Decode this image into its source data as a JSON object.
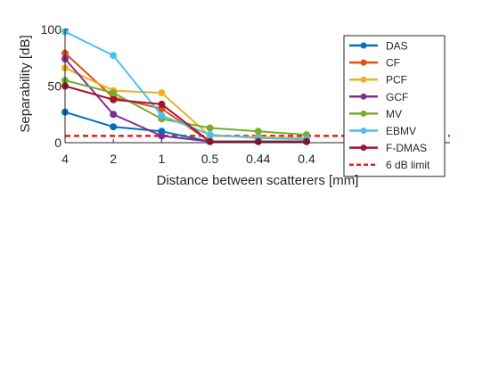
{
  "chart_data": {
    "type": "line",
    "xlabel": "Distance between scatterers [mm]",
    "ylabel": "Separability [dB]",
    "categories": [
      "4",
      "2",
      "1",
      "0.5",
      "0.44",
      "0.4"
    ],
    "yticks": [
      0,
      50,
      100
    ],
    "ylim": [
      0,
      100
    ],
    "grid": false,
    "legend_position": "right",
    "series": [
      {
        "name": "DAS",
        "color": "#0072BD",
        "values": [
          27,
          14,
          10,
          1,
          1,
          1
        ]
      },
      {
        "name": "CF",
        "color": "#D95319",
        "values": [
          79,
          40,
          30,
          1,
          1,
          1
        ]
      },
      {
        "name": "PCF",
        "color": "#EDB120",
        "values": [
          66,
          46,
          44,
          6,
          5,
          4
        ]
      },
      {
        "name": "GCF",
        "color": "#7E2F8E",
        "values": [
          74,
          25,
          6,
          1,
          1,
          1
        ]
      },
      {
        "name": "MV",
        "color": "#77AC30",
        "values": [
          55,
          44,
          21,
          13,
          10,
          7
        ]
      },
      {
        "name": "EBMV",
        "color": "#4DBEEE",
        "values": [
          98,
          77,
          24,
          7,
          4,
          3
        ]
      },
      {
        "name": "F-DMAS",
        "color": "#A2142F",
        "values": [
          50,
          38,
          34,
          1,
          1,
          1
        ]
      }
    ],
    "reference_line": {
      "name": "6 dB limit",
      "value": 6,
      "color": "#E51F1F",
      "style": "dashed"
    }
  }
}
